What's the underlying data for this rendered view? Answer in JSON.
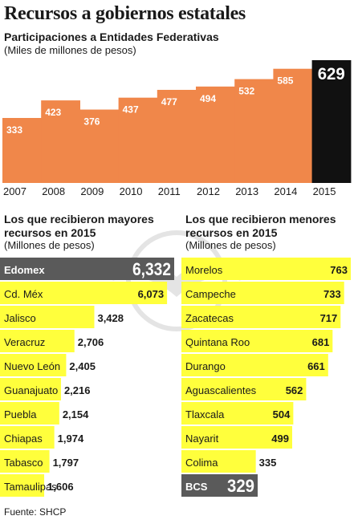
{
  "header": {
    "title": "Recursos a gobiernos estatales",
    "subtitle": "Participaciones a Entidades Federativas",
    "units": "(Miles de millones de pesos)"
  },
  "left_section": {
    "title_line1": "Los que recibieron mayores",
    "title_line2": "recursos en 2015",
    "units": "(Millones de pesos)"
  },
  "right_section": {
    "title_line1": "Los que recibieron menores",
    "title_line2": "recursos en 2015",
    "units": "(Millones de pesos)"
  },
  "source": "Fuente: SHCP",
  "colors": {
    "orange": "#f0874a",
    "black": "#111111",
    "yellow": "#ffff3c",
    "gray": "#5a5a5a"
  },
  "chart_data": [
    {
      "type": "area",
      "categories": [
        "2007",
        "2008",
        "2009",
        "2010",
        "2011",
        "2012",
        "2013",
        "2014",
        "2015"
      ],
      "values": [
        333,
        423,
        376,
        437,
        477,
        494,
        532,
        585,
        629
      ],
      "highlight": "2015",
      "grid": false,
      "ylim": [
        0,
        629
      ]
    },
    {
      "type": "bar",
      "orientation": "horizontal",
      "categories": [
        "Edomex",
        "Cd. Méx",
        "Jalisco",
        "Veracruz",
        "Nuevo León",
        "Guanajuato",
        "Puebla",
        "Chiapas",
        "Tabasco",
        "Tamaulipas"
      ],
      "values": [
        6332,
        6073,
        3428,
        2706,
        2405,
        2216,
        2154,
        1974,
        1797,
        1606
      ],
      "labels": [
        "6,332",
        "6,073",
        "3,428",
        "2,706",
        "2,405",
        "2,216",
        "2,154",
        "1,974",
        "1,797",
        "1,606"
      ],
      "highlight": "Edomex"
    },
    {
      "type": "bar",
      "orientation": "horizontal",
      "categories": [
        "Morelos",
        "Campeche",
        "Zacatecas",
        "Quintana Roo",
        "Durango",
        "Aguascalientes",
        "Tlaxcala",
        "Nayarit",
        "Colima",
        "BCS"
      ],
      "values": [
        763,
        733,
        717,
        681,
        661,
        562,
        504,
        499,
        335,
        329
      ],
      "labels": [
        "763",
        "733",
        "717",
        "681",
        "661",
        "562",
        "504",
        "499",
        "335",
        "329"
      ],
      "highlight": "BCS"
    }
  ]
}
